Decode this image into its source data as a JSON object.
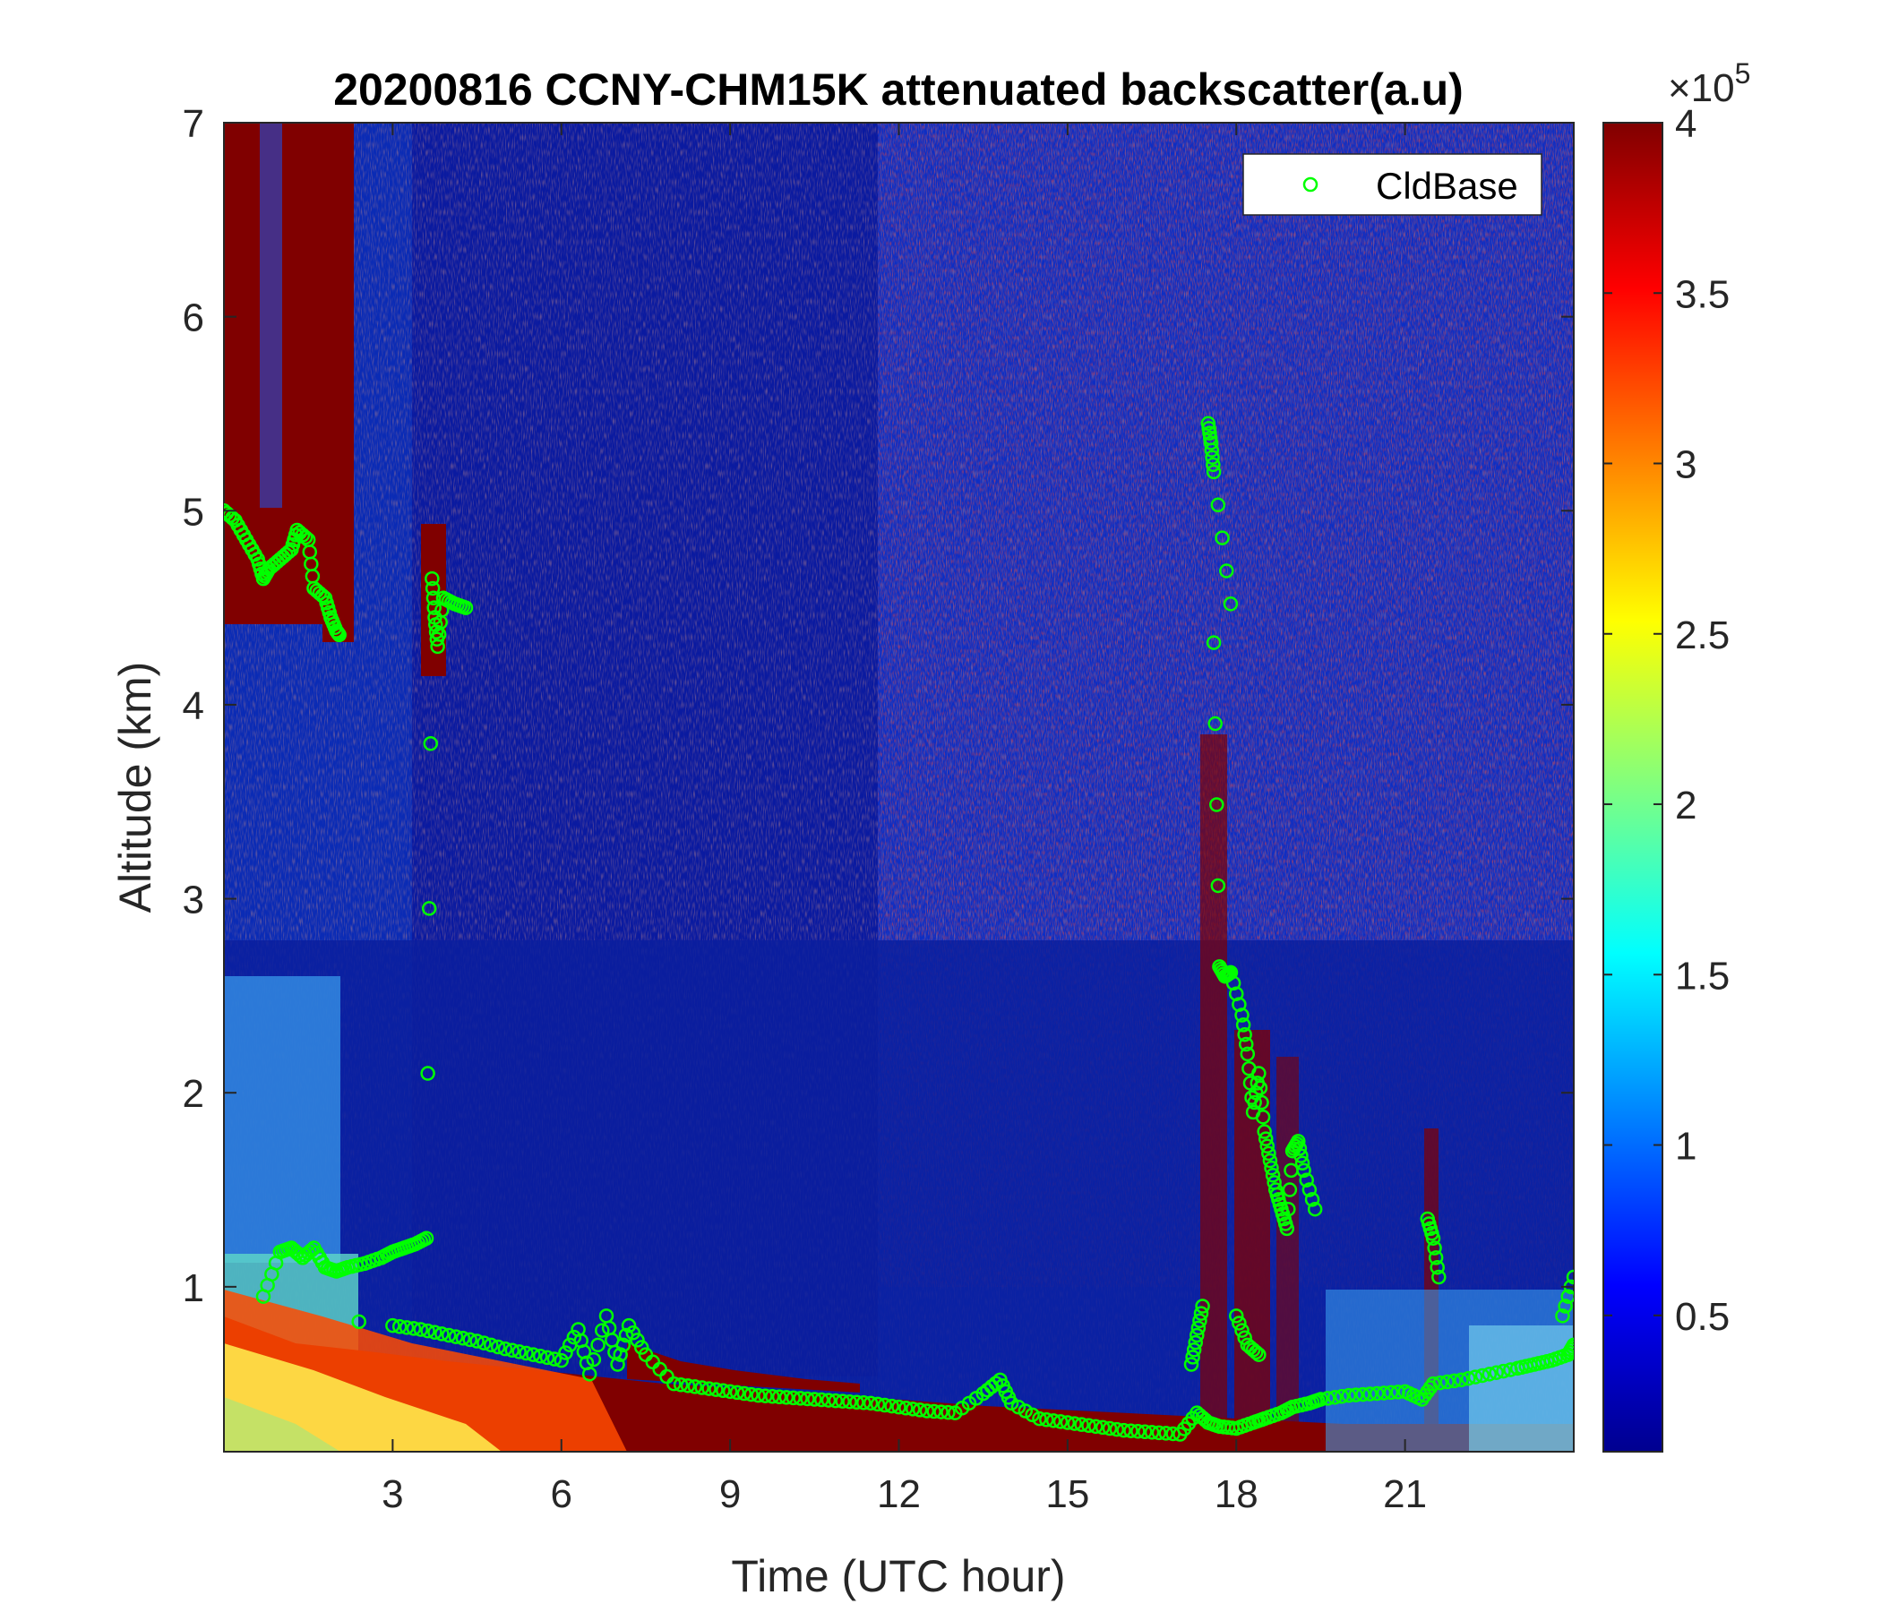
{
  "chart_data": {
    "type": "heatmap",
    "title": "20200816 CCNY-CHM15K attenuated backscatter(a.u)",
    "xlabel": "Time (UTC hour)",
    "ylabel": "Altitude (km)",
    "xlim": [
      0,
      24
    ],
    "ylim": [
      0.15,
      7
    ],
    "x_ticks": [
      3,
      6,
      9,
      12,
      15,
      18,
      21
    ],
    "y_ticks": [
      1,
      2,
      3,
      4,
      5,
      6,
      7
    ],
    "colormap": "jet",
    "colorbar": {
      "clim": [
        10000,
        400000
      ],
      "ticks": [
        "0.5",
        "1",
        "1.5",
        "2",
        "2.5",
        "3",
        "3.5",
        "4"
      ],
      "tick_values": [
        0.5,
        1,
        1.5,
        2,
        2.5,
        3,
        3.5,
        4
      ],
      "multiplier_prefix": "×10",
      "multiplier_exponent": "5"
    },
    "legend": {
      "position": "top-right",
      "entries": [
        {
          "name": "CldBase",
          "marker": "open-circle",
          "color": "#00ff00"
        }
      ]
    },
    "series": [
      {
        "name": "CldBase",
        "type": "scatter",
        "x": [
          0.0,
          0.2,
          0.4,
          0.6,
          0.7,
          0.8,
          1.0,
          1.2,
          1.3,
          1.5,
          1.6,
          1.8,
          1.9,
          2.0,
          2.05,
          0.7,
          1.0,
          1.2,
          1.4,
          1.6,
          1.8,
          2.0,
          2.2,
          2.5,
          2.8,
          3.0,
          3.2,
          3.4,
          3.6,
          3.7,
          3.75,
          3.8,
          3.9,
          4.1,
          4.3,
          2.4,
          3.0,
          3.5,
          4.0,
          4.5,
          5.0,
          5.5,
          6.0,
          6.3,
          6.5,
          6.8,
          7.0,
          7.2,
          7.5,
          8.0,
          8.5,
          9.0,
          9.5,
          10.0,
          10.5,
          11.0,
          11.5,
          12.0,
          12.5,
          13.0,
          13.5,
          13.8,
          14.0,
          14.5,
          15.0,
          15.5,
          16.0,
          16.5,
          17.0,
          17.3,
          17.5,
          17.7,
          18.0,
          18.3,
          18.5,
          18.8,
          19.0,
          19.3,
          19.5,
          20.0,
          20.5,
          21.0,
          21.3,
          21.5,
          22.0,
          22.5,
          23.0,
          23.3,
          23.6,
          23.9,
          24.0,
          17.5,
          17.55,
          17.6,
          17.9,
          17.6,
          17.7,
          17.8,
          17.9,
          18.1,
          18.2,
          18.3,
          18.4,
          18.5,
          18.6,
          18.7,
          18.8,
          18.9,
          19.0,
          19.1,
          19.2,
          19.4,
          17.2,
          17.3,
          17.4,
          18.0,
          18.2,
          18.4,
          21.4,
          21.5,
          21.6,
          23.8,
          24.0
        ],
        "y": [
          5.0,
          4.95,
          4.85,
          4.75,
          4.65,
          4.7,
          4.75,
          4.8,
          4.9,
          4.85,
          4.6,
          4.55,
          4.45,
          4.38,
          4.36,
          0.95,
          1.18,
          1.2,
          1.15,
          1.2,
          1.1,
          1.08,
          1.1,
          1.12,
          1.15,
          1.18,
          1.2,
          1.22,
          1.25,
          4.65,
          4.45,
          4.3,
          4.55,
          4.52,
          4.5,
          0.82,
          0.8,
          0.78,
          0.75,
          0.72,
          0.68,
          0.65,
          0.62,
          0.78,
          0.55,
          0.85,
          0.6,
          0.8,
          0.65,
          0.5,
          0.48,
          0.46,
          0.44,
          0.43,
          0.42,
          0.41,
          0.4,
          0.38,
          0.36,
          0.35,
          0.45,
          0.52,
          0.4,
          0.32,
          0.3,
          0.28,
          0.26,
          0.25,
          0.24,
          0.35,
          0.3,
          0.28,
          0.27,
          0.3,
          0.32,
          0.35,
          0.38,
          0.4,
          0.42,
          0.44,
          0.45,
          0.46,
          0.42,
          0.5,
          0.52,
          0.55,
          0.58,
          0.6,
          0.62,
          0.65,
          0.7,
          5.45,
          5.35,
          5.2,
          4.52,
          4.32,
          2.65,
          2.6,
          2.62,
          2.4,
          2.2,
          1.9,
          2.1,
          1.8,
          1.65,
          1.5,
          1.4,
          1.3,
          1.7,
          1.75,
          1.6,
          1.4,
          0.6,
          0.75,
          0.9,
          0.85,
          0.7,
          0.65,
          1.35,
          1.25,
          1.05,
          0.85,
          1.05
        ]
      }
    ]
  }
}
